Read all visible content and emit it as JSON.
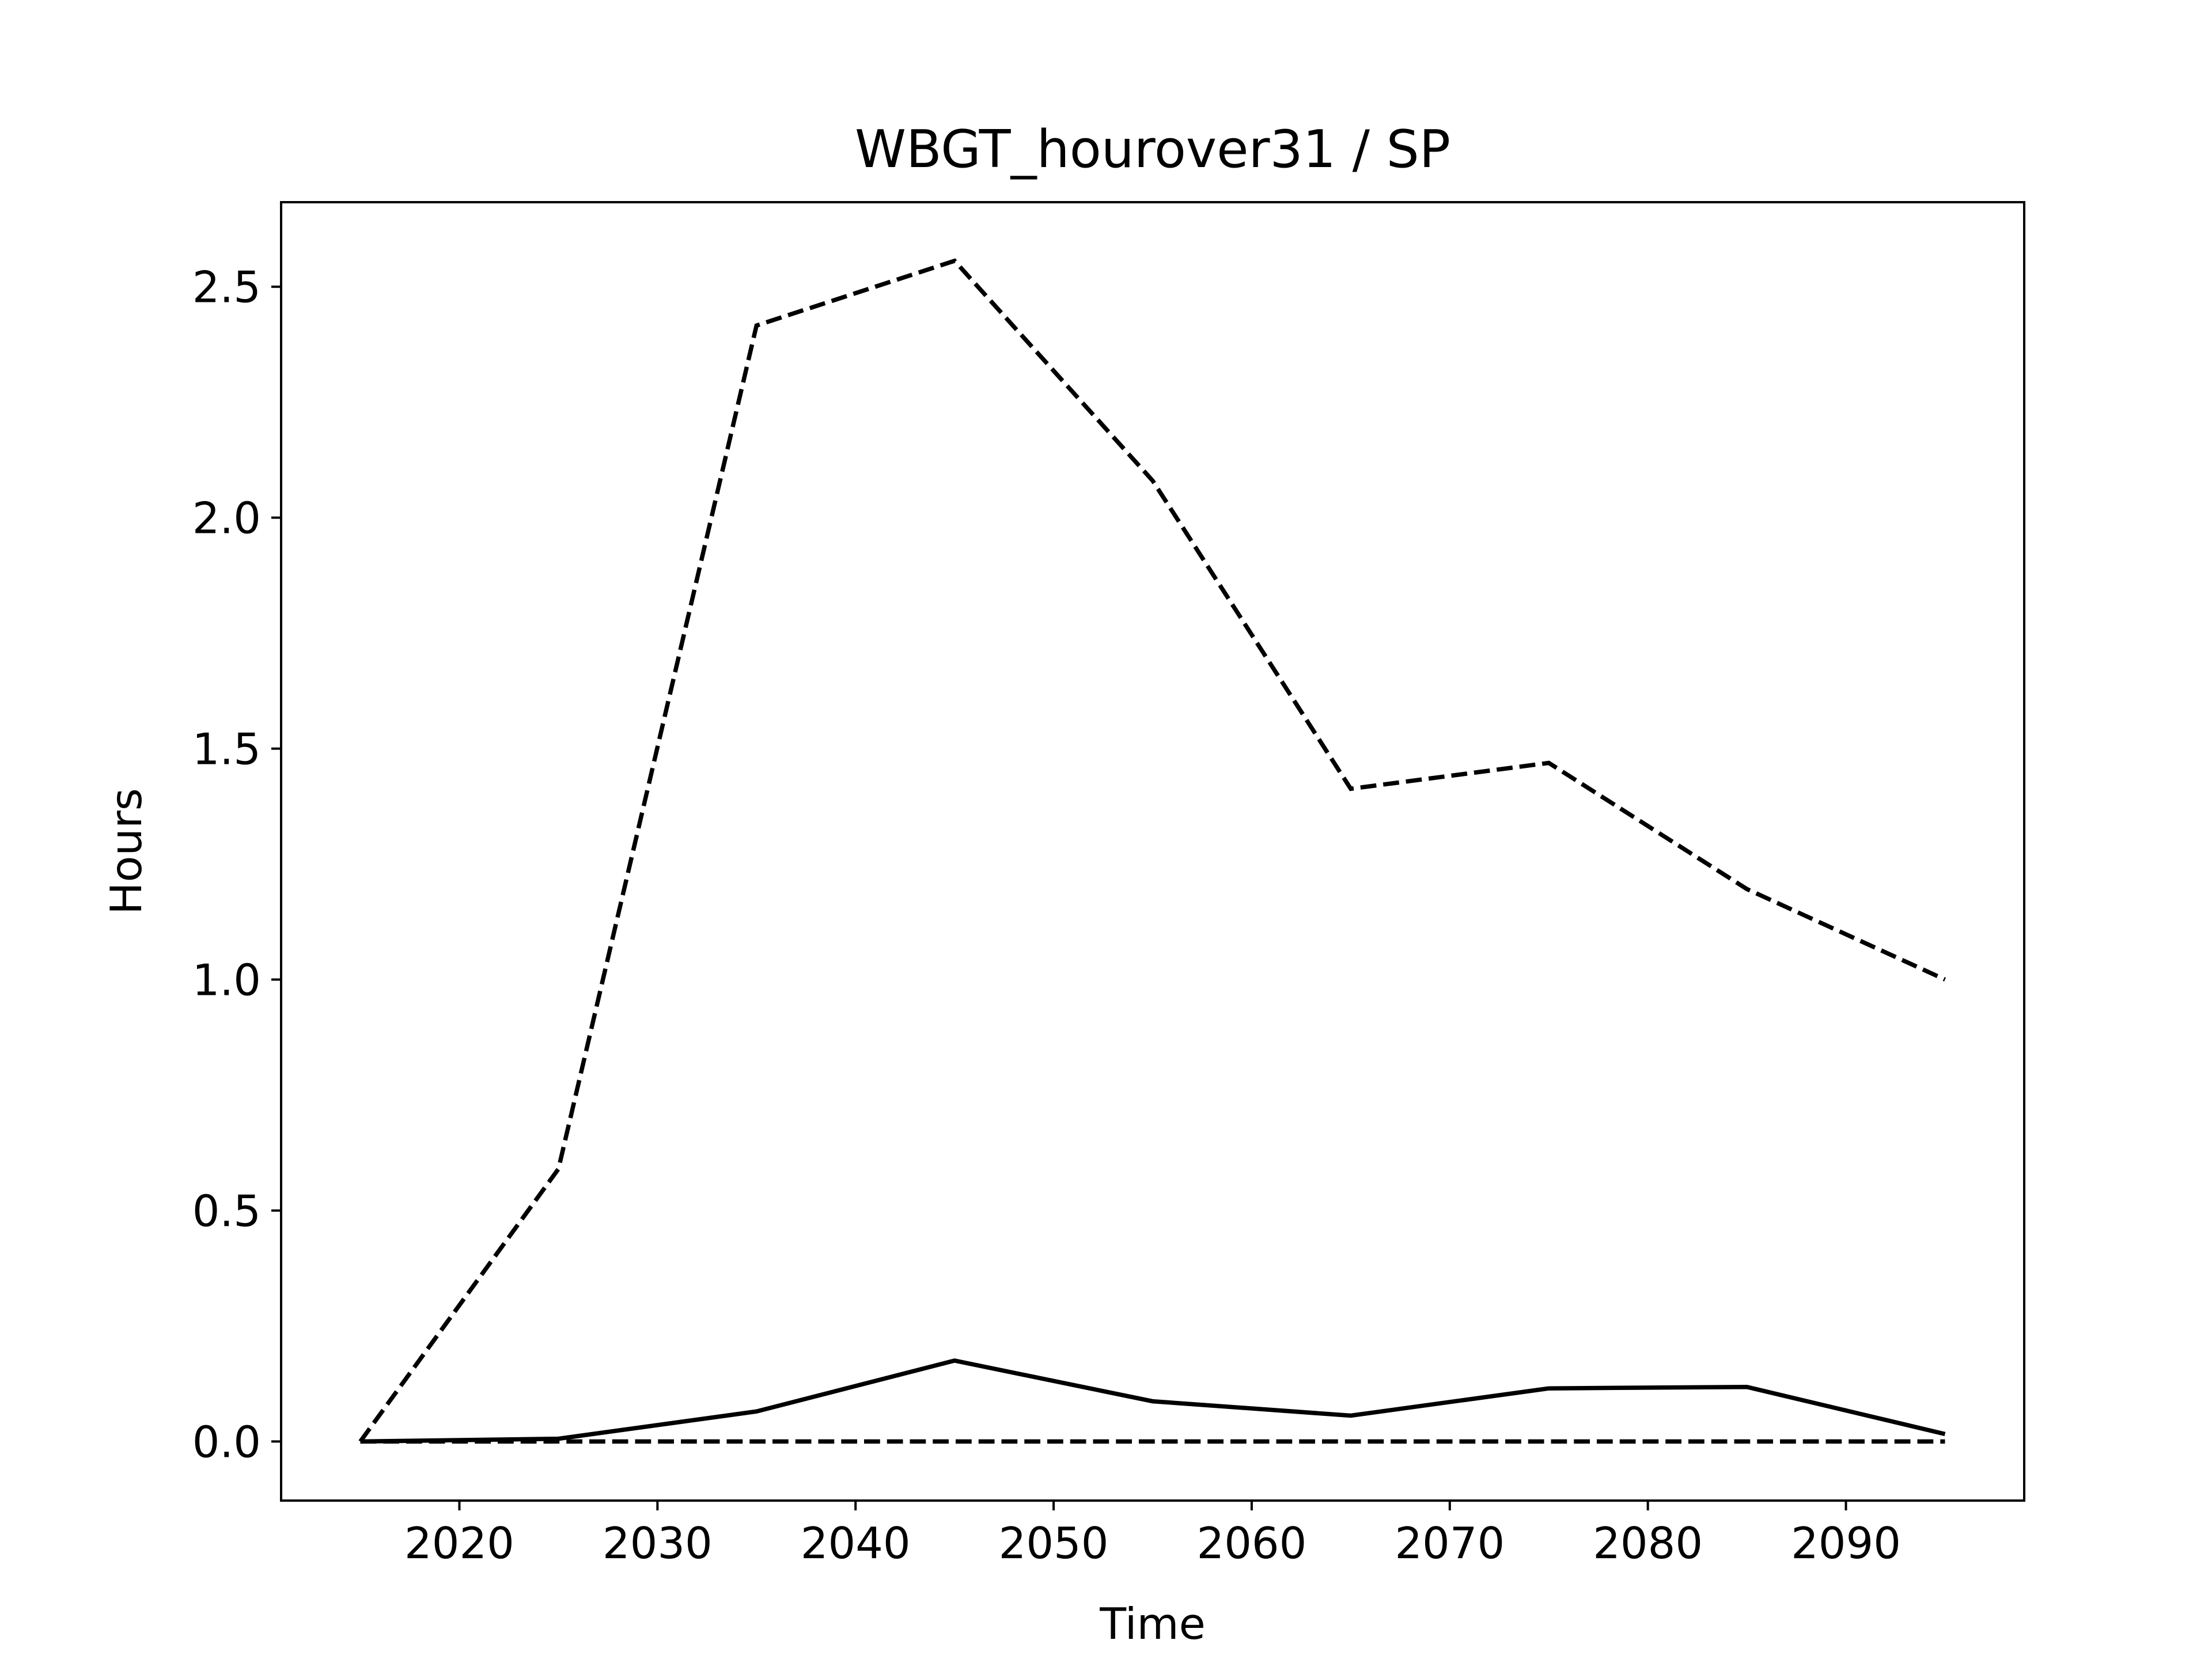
{
  "chart_data": {
    "type": "line",
    "title": "WBGT_hourover31 / SP",
    "x_label": "Time",
    "y_label": "Hours",
    "x": [
      2015,
      2025,
      2035,
      2045,
      2055,
      2065,
      2075,
      2085,
      2095
    ],
    "series": [
      {
        "color": "#000000",
        "linestyle": "dashed",
        "values": [
          0,
          0.59,
          2.416,
          2.556,
          2.08,
          1.413,
          1.469,
          1.196,
          1.0
        ]
      },
      {
        "color": "#000000",
        "linestyle": "solid",
        "values": [
          0,
          0.006,
          0.065,
          0.175,
          0.087,
          0.056,
          0.115,
          0.118,
          0.016
        ]
      },
      {
        "color": "#000000",
        "linestyle": "dashed",
        "values": [
          0,
          0,
          0,
          0,
          0,
          0,
          0,
          0,
          0
        ]
      }
    ],
    "xlim": [
      2011,
      2099
    ],
    "xticks": [
      2020,
      2030,
      2040,
      2050,
      2060,
      2070,
      2080,
      2090
    ],
    "ylim": [
      -0.128,
      2.683
    ],
    "yticks": [
      {
        "value": 0,
        "label": "0.0"
      },
      0.5,
      {
        "value": 1,
        "label": "1.0"
      },
      1.5,
      {
        "value": 2,
        "label": "2.0"
      },
      2.5
    ],
    "grid": false
  }
}
